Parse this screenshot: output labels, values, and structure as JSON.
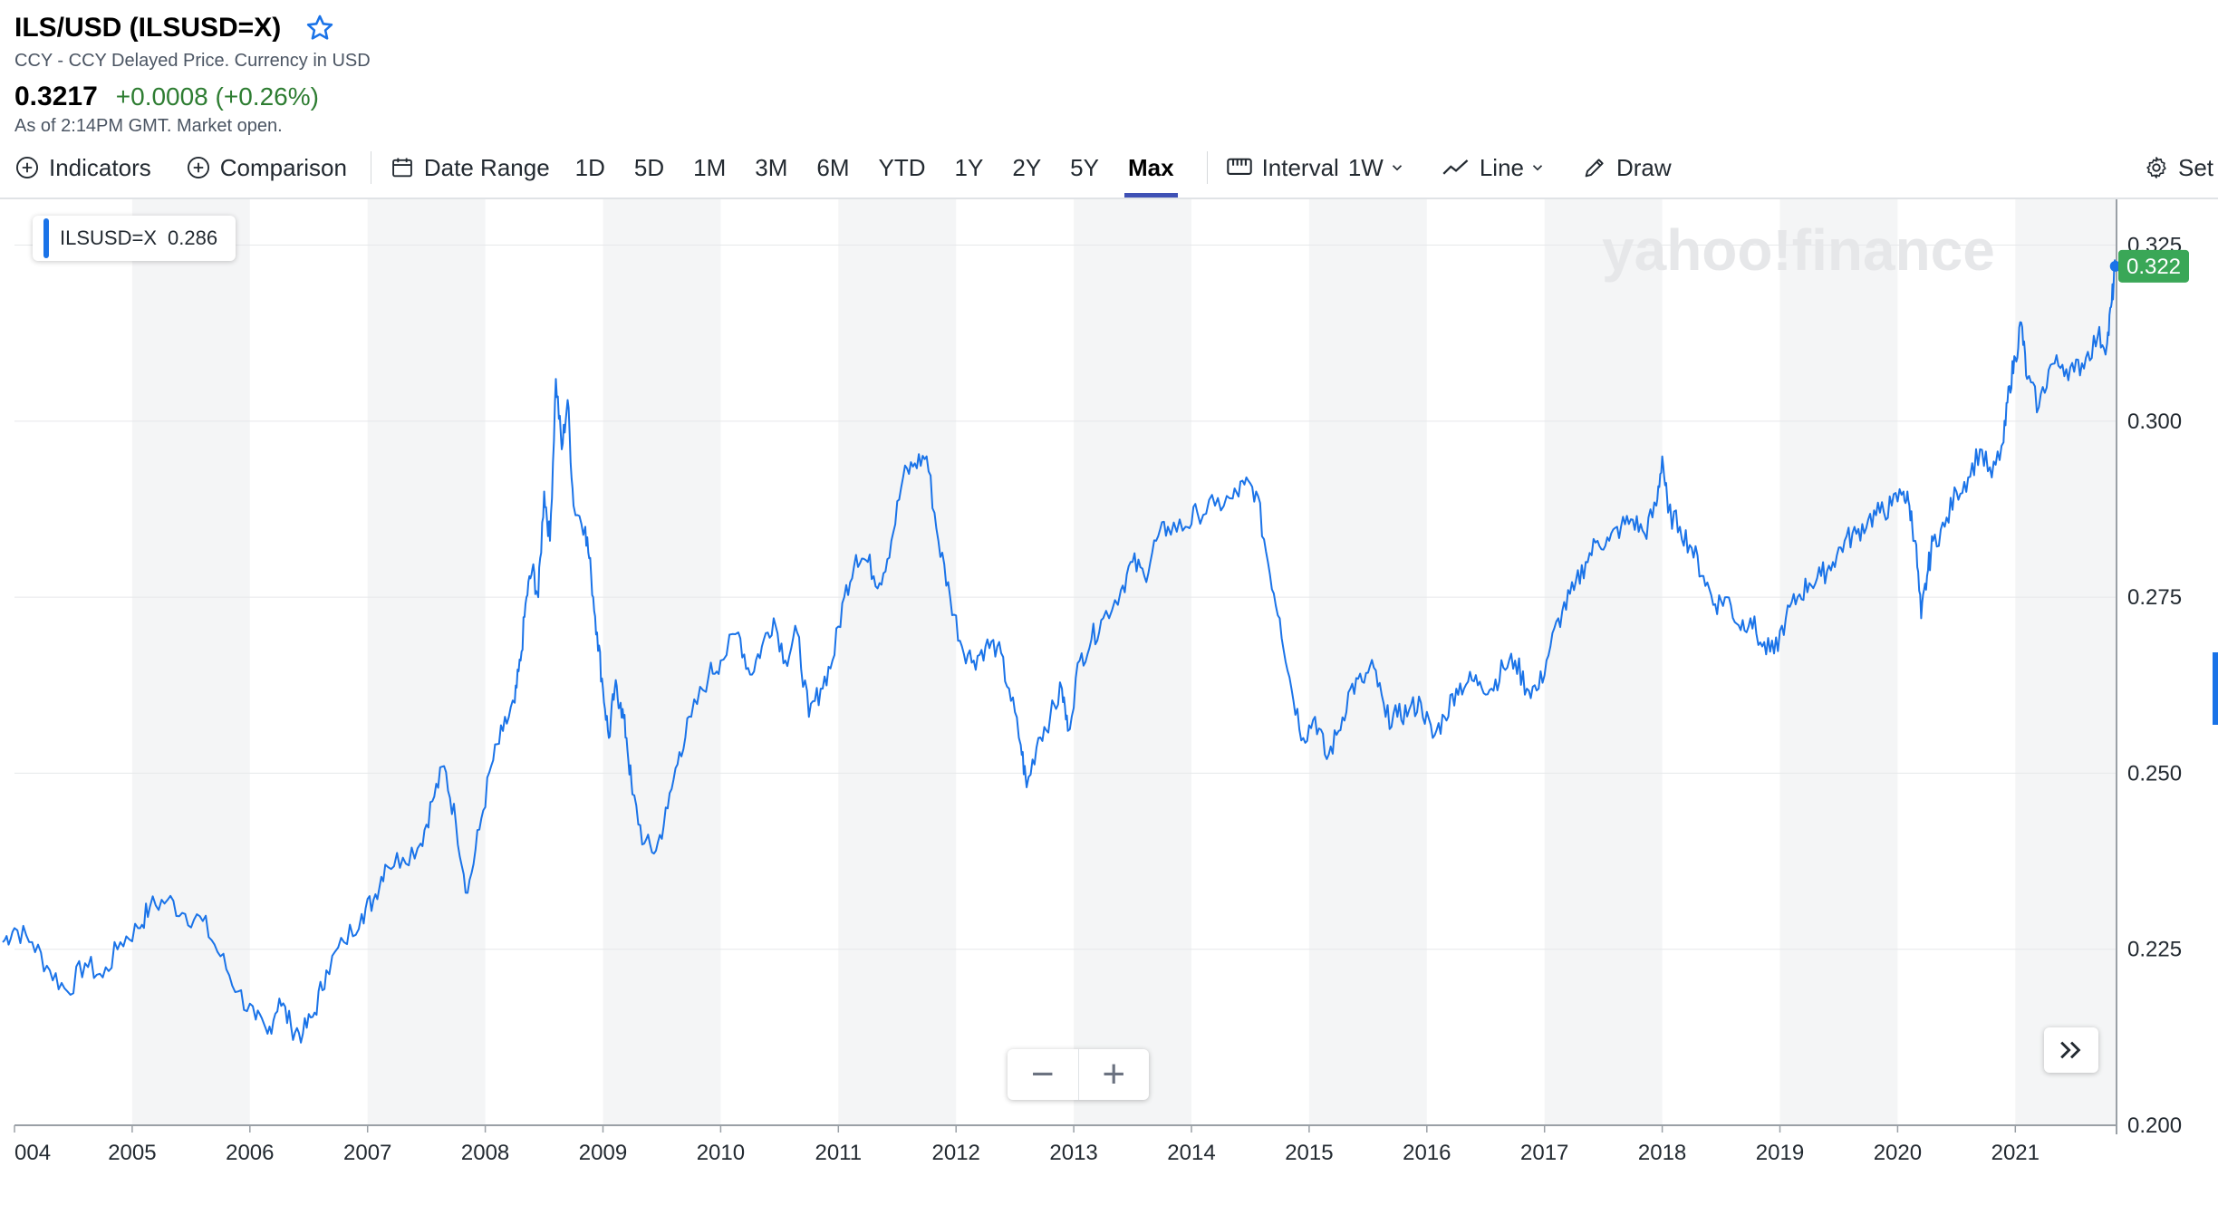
{
  "header": {
    "title": "ILS/USD (ILSUSD=X)",
    "subtitle": "CCY - CCY Delayed Price. Currency in USD",
    "price": "0.3217",
    "change": "+0.0008 (+0.26%)",
    "as_of": "As of 2:14PM GMT. Market open.",
    "star_icon": "star-outline-icon"
  },
  "toolbar": {
    "indicators": "Indicators",
    "comparison": "Comparison",
    "date_range": "Date Range",
    "ranges": [
      "1D",
      "5D",
      "1M",
      "3M",
      "6M",
      "YTD",
      "1Y",
      "2Y",
      "5Y",
      "Max"
    ],
    "active_range": "Max",
    "interval_label": "Interval",
    "interval_value": "1W",
    "line": "Line",
    "draw": "Draw",
    "settings": "Set"
  },
  "legend": {
    "symbol": "ILSUSD=X",
    "value": "0.286"
  },
  "watermark": "yahoo!finance",
  "zoom": {
    "minus": "−",
    "plus": "+"
  },
  "colors": {
    "line": "#1a73e8",
    "price_badge": "#3aa757",
    "band": "#f4f5f6",
    "positive": "#2e7d32",
    "active_tab": "#3f51b5"
  },
  "chart_data": {
    "type": "line",
    "series": [
      {
        "name": "ILSUSD=X"
      }
    ],
    "x_tick_labels": [
      "004",
      "2005",
      "2006",
      "2007",
      "2008",
      "2009",
      "2010",
      "2011",
      "2012",
      "2013",
      "2014",
      "2015",
      "2016",
      "2017",
      "2018",
      "2019",
      "2020",
      "2021"
    ],
    "y_tick_labels": [
      "0.325",
      "0.300",
      "0.275",
      "0.250",
      "0.225",
      "0.200"
    ],
    "ylim": [
      0.2,
      0.3315
    ],
    "xlim": [
      2003.9,
      2021.85
    ],
    "last_value_label": "0.322",
    "alternating_year_bands": true,
    "points": [
      [
        2003.9,
        0.226
      ],
      [
        2004.0,
        0.228
      ],
      [
        2004.15,
        0.226
      ],
      [
        2004.3,
        0.222
      ],
      [
        2004.45,
        0.219
      ],
      [
        2004.6,
        0.223
      ],
      [
        2004.75,
        0.221
      ],
      [
        2004.9,
        0.226
      ],
      [
        2005.05,
        0.228
      ],
      [
        2005.15,
        0.231
      ],
      [
        2005.3,
        0.232
      ],
      [
        2005.45,
        0.23
      ],
      [
        2005.6,
        0.229
      ],
      [
        2005.75,
        0.224
      ],
      [
        2005.9,
        0.219
      ],
      [
        2006.05,
        0.215
      ],
      [
        2006.15,
        0.213
      ],
      [
        2006.25,
        0.218
      ],
      [
        2006.35,
        0.214
      ],
      [
        2006.45,
        0.213
      ],
      [
        2006.55,
        0.216
      ],
      [
        2006.65,
        0.222
      ],
      [
        2006.8,
        0.226
      ],
      [
        2006.95,
        0.23
      ],
      [
        2007.05,
        0.232
      ],
      [
        2007.15,
        0.237
      ],
      [
        2007.3,
        0.238
      ],
      [
        2007.45,
        0.24
      ],
      [
        2007.55,
        0.246
      ],
      [
        2007.65,
        0.251
      ],
      [
        2007.75,
        0.243
      ],
      [
        2007.85,
        0.233
      ],
      [
        2007.95,
        0.242
      ],
      [
        2008.05,
        0.251
      ],
      [
        2008.15,
        0.256
      ],
      [
        2008.25,
        0.26
      ],
      [
        2008.3,
        0.266
      ],
      [
        2008.35,
        0.275
      ],
      [
        2008.4,
        0.279
      ],
      [
        2008.45,
        0.275
      ],
      [
        2008.5,
        0.29
      ],
      [
        2008.55,
        0.283
      ],
      [
        2008.6,
        0.306
      ],
      [
        2008.65,
        0.296
      ],
      [
        2008.7,
        0.303
      ],
      [
        2008.75,
        0.288
      ],
      [
        2008.85,
        0.285
      ],
      [
        2008.9,
        0.278
      ],
      [
        2008.95,
        0.27
      ],
      [
        2009.0,
        0.262
      ],
      [
        2009.05,
        0.255
      ],
      [
        2009.1,
        0.262
      ],
      [
        2009.15,
        0.26
      ],
      [
        2009.2,
        0.255
      ],
      [
        2009.25,
        0.247
      ],
      [
        2009.35,
        0.24
      ],
      [
        2009.45,
        0.239
      ],
      [
        2009.55,
        0.245
      ],
      [
        2009.65,
        0.253
      ],
      [
        2009.75,
        0.258
      ],
      [
        2009.9,
        0.264
      ],
      [
        2010.0,
        0.266
      ],
      [
        2010.15,
        0.27
      ],
      [
        2010.25,
        0.264
      ],
      [
        2010.35,
        0.268
      ],
      [
        2010.45,
        0.272
      ],
      [
        2010.55,
        0.266
      ],
      [
        2010.65,
        0.27
      ],
      [
        2010.75,
        0.258
      ],
      [
        2010.85,
        0.262
      ],
      [
        2010.95,
        0.266
      ],
      [
        2011.05,
        0.275
      ],
      [
        2011.15,
        0.281
      ],
      [
        2011.25,
        0.28
      ],
      [
        2011.35,
        0.277
      ],
      [
        2011.45,
        0.283
      ],
      [
        2011.55,
        0.292
      ],
      [
        2011.65,
        0.294
      ],
      [
        2011.75,
        0.295
      ],
      [
        2011.85,
        0.283
      ],
      [
        2011.95,
        0.275
      ],
      [
        2012.05,
        0.268
      ],
      [
        2012.15,
        0.266
      ],
      [
        2012.25,
        0.268
      ],
      [
        2012.35,
        0.268
      ],
      [
        2012.45,
        0.262
      ],
      [
        2012.55,
        0.254
      ],
      [
        2012.6,
        0.248
      ],
      [
        2012.7,
        0.255
      ],
      [
        2012.8,
        0.258
      ],
      [
        2012.9,
        0.262
      ],
      [
        2012.95,
        0.256
      ],
      [
        2013.05,
        0.266
      ],
      [
        2013.15,
        0.269
      ],
      [
        2013.25,
        0.272
      ],
      [
        2013.4,
        0.276
      ],
      [
        2013.5,
        0.28
      ],
      [
        2013.6,
        0.278
      ],
      [
        2013.7,
        0.283
      ],
      [
        2013.8,
        0.285
      ],
      [
        2013.95,
        0.285
      ],
      [
        2014.05,
        0.287
      ],
      [
        2014.2,
        0.288
      ],
      [
        2014.35,
        0.289
      ],
      [
        2014.45,
        0.291
      ],
      [
        2014.55,
        0.29
      ],
      [
        2014.65,
        0.28
      ],
      [
        2014.75,
        0.272
      ],
      [
        2014.85,
        0.262
      ],
      [
        2014.95,
        0.255
      ],
      [
        2015.05,
        0.258
      ],
      [
        2015.15,
        0.252
      ],
      [
        2015.25,
        0.256
      ],
      [
        2015.35,
        0.262
      ],
      [
        2015.45,
        0.263
      ],
      [
        2015.55,
        0.265
      ],
      [
        2015.65,
        0.258
      ],
      [
        2015.75,
        0.258
      ],
      [
        2015.85,
        0.259
      ],
      [
        2015.95,
        0.26
      ],
      [
        2016.05,
        0.255
      ],
      [
        2016.15,
        0.258
      ],
      [
        2016.25,
        0.262
      ],
      [
        2016.35,
        0.263
      ],
      [
        2016.45,
        0.263
      ],
      [
        2016.55,
        0.262
      ],
      [
        2016.65,
        0.265
      ],
      [
        2016.75,
        0.266
      ],
      [
        2016.85,
        0.262
      ],
      [
        2016.95,
        0.262
      ],
      [
        2017.05,
        0.268
      ],
      [
        2017.15,
        0.273
      ],
      [
        2017.25,
        0.276
      ],
      [
        2017.35,
        0.28
      ],
      [
        2017.45,
        0.283
      ],
      [
        2017.55,
        0.283
      ],
      [
        2017.65,
        0.285
      ],
      [
        2017.75,
        0.286
      ],
      [
        2017.85,
        0.284
      ],
      [
        2017.95,
        0.288
      ],
      [
        2018.0,
        0.295
      ],
      [
        2018.05,
        0.287
      ],
      [
        2018.15,
        0.285
      ],
      [
        2018.25,
        0.282
      ],
      [
        2018.35,
        0.278
      ],
      [
        2018.45,
        0.274
      ],
      [
        2018.55,
        0.275
      ],
      [
        2018.65,
        0.271
      ],
      [
        2018.75,
        0.272
      ],
      [
        2018.85,
        0.268
      ],
      [
        2018.95,
        0.267
      ],
      [
        2019.05,
        0.272
      ],
      [
        2019.15,
        0.275
      ],
      [
        2019.25,
        0.277
      ],
      [
        2019.35,
        0.278
      ],
      [
        2019.45,
        0.28
      ],
      [
        2019.55,
        0.283
      ],
      [
        2019.65,
        0.284
      ],
      [
        2019.75,
        0.286
      ],
      [
        2019.85,
        0.287
      ],
      [
        2019.95,
        0.288
      ],
      [
        2020.05,
        0.29
      ],
      [
        2020.1,
        0.288
      ],
      [
        2020.15,
        0.283
      ],
      [
        2020.2,
        0.272
      ],
      [
        2020.25,
        0.278
      ],
      [
        2020.3,
        0.283
      ],
      [
        2020.4,
        0.285
      ],
      [
        2020.5,
        0.29
      ],
      [
        2020.6,
        0.292
      ],
      [
        2020.7,
        0.296
      ],
      [
        2020.8,
        0.292
      ],
      [
        2020.9,
        0.297
      ],
      [
        2020.95,
        0.305
      ],
      [
        2021.0,
        0.309
      ],
      [
        2021.05,
        0.314
      ],
      [
        2021.1,
        0.306
      ],
      [
        2021.2,
        0.302
      ],
      [
        2021.3,
        0.308
      ],
      [
        2021.4,
        0.308
      ],
      [
        2021.5,
        0.307
      ],
      [
        2021.6,
        0.309
      ],
      [
        2021.7,
        0.312
      ],
      [
        2021.78,
        0.311
      ],
      [
        2021.82,
        0.317
      ],
      [
        2021.85,
        0.322
      ]
    ]
  }
}
